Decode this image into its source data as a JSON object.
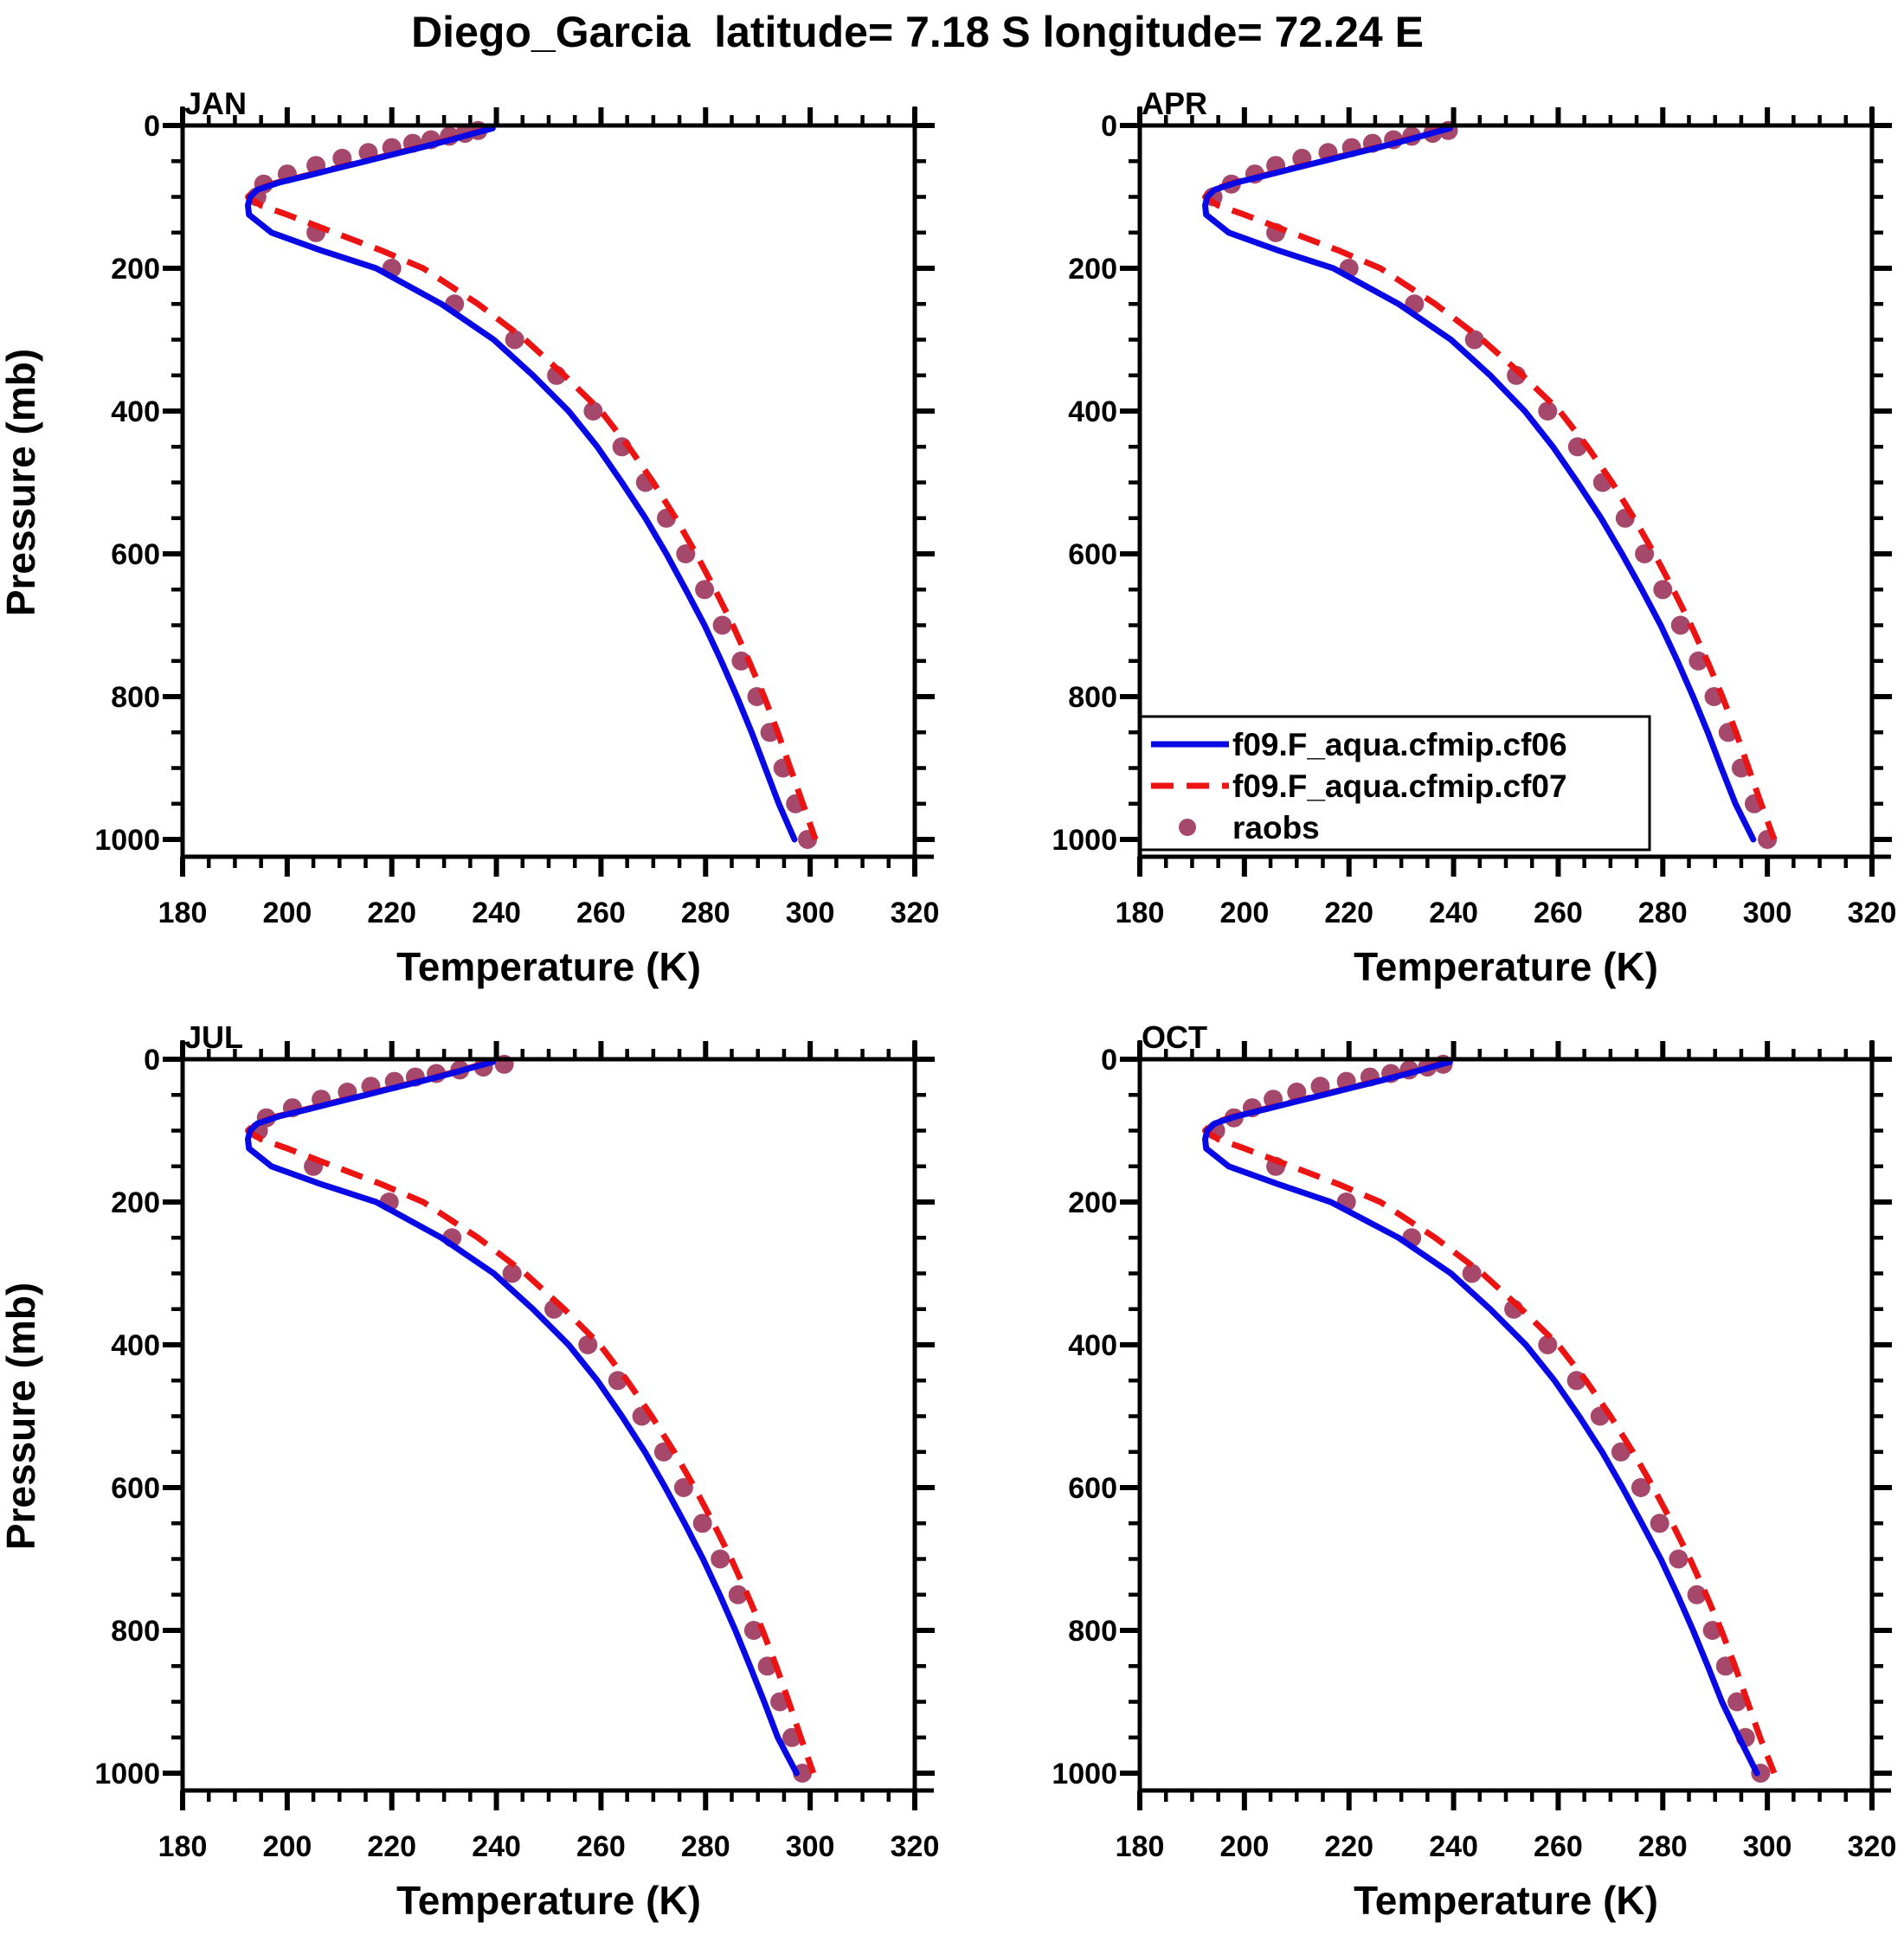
{
  "title": "Diego_Garcia  latitude= 7.18 S longitude= 72.24 E",
  "legend": {
    "panel": "APR",
    "items": [
      {
        "id": "cf06",
        "label": "f09.F_aqua.cfmip.cf06",
        "style": "solid-line",
        "color": "#0909e6"
      },
      {
        "id": "cf07",
        "label": "f09.F_aqua.cfmip.cf07",
        "style": "dashed-line",
        "color": "#ec1313"
      },
      {
        "id": "raobs",
        "label": "raobs",
        "style": "dot",
        "color": "#a5486b"
      }
    ]
  },
  "chart_data": {
    "type": "line",
    "layout": "2x2 panels",
    "xlabel": "Temperature (K)",
    "ylabel": "Pressure (mb)",
    "xlim": [
      180,
      320
    ],
    "ylim": [
      0,
      1000
    ],
    "y_inverted": true,
    "xticks": {
      "major_step": 20,
      "minor_step": 5,
      "labels": [
        "180",
        "200",
        "220",
        "240",
        "260",
        "280",
        "300",
        "320"
      ]
    },
    "yticks": {
      "major_step": 200,
      "minor_step": 50,
      "labels": [
        "0",
        "200",
        "400",
        "600",
        "800",
        "1000"
      ]
    },
    "grid": false,
    "colors": {
      "cf06": "#0909e6",
      "cf07": "#ec1313",
      "raobs": "#a5486b",
      "frame": "#000000"
    },
    "model_pressure_mb": [
      4,
      10,
      20,
      30,
      40,
      50,
      60,
      70,
      80,
      90,
      100,
      112,
      125,
      150,
      175,
      200,
      250,
      300,
      350,
      400,
      450,
      500,
      550,
      600,
      650,
      700,
      750,
      800,
      850,
      900,
      950,
      1000
    ],
    "raobs_pressure_mb": [
      7,
      11,
      15,
      20,
      25,
      31,
      38,
      46,
      56,
      68,
      82,
      100,
      150,
      200,
      250,
      300,
      350,
      400,
      450,
      500,
      550,
      600,
      650,
      700,
      750,
      800,
      850,
      900,
      950,
      1000
    ],
    "panels": [
      {
        "month": "JAN",
        "cf06_temperature_K": [
          239.3,
          236.2,
          231.3,
          226.0,
          220.5,
          215.0,
          209.5,
          204.0,
          198.4,
          194.3,
          192.9,
          192.5,
          192.7,
          197.0,
          206.5,
          217.0,
          229.5,
          239.5,
          247.0,
          253.8,
          259.3,
          264.0,
          268.5,
          272.5,
          276.2,
          279.8,
          283.0,
          286.0,
          288.8,
          291.4,
          294.0,
          297.0
        ],
        "cf07_temperature_K": [
          238.9,
          235.8,
          230.9,
          225.6,
          220.1,
          214.6,
          209.1,
          203.6,
          198.0,
          193.9,
          192.5,
          195.0,
          200.0,
          209.0,
          218.0,
          226.0,
          236.5,
          245.5,
          253.0,
          260.0,
          265.3,
          270.0,
          274.3,
          278.2,
          281.8,
          285.2,
          288.3,
          291.2,
          293.8,
          296.2,
          298.6,
          301.0
        ],
        "raobs_temperature_K": [
          236.5,
          234.0,
          231.0,
          227.5,
          224.0,
          220.0,
          215.5,
          210.5,
          205.5,
          200.0,
          195.5,
          194.2,
          205.5,
          220.0,
          232.0,
          243.5,
          251.5,
          258.5,
          264.0,
          268.5,
          272.5,
          276.2,
          279.8,
          283.2,
          286.8,
          289.8,
          292.3,
          294.8,
          297.2,
          299.5
        ]
      },
      {
        "month": "APR",
        "cf06_temperature_K": [
          239.3,
          236.2,
          231.3,
          226.0,
          220.5,
          215.0,
          209.5,
          204.0,
          198.4,
          194.3,
          192.9,
          192.5,
          192.7,
          197.0,
          206.5,
          217.0,
          229.5,
          239.5,
          247.0,
          253.6,
          259.0,
          263.7,
          268.2,
          272.2,
          276.0,
          279.6,
          282.8,
          285.8,
          288.6,
          291.2,
          293.9,
          297.3
        ],
        "cf07_temperature_K": [
          238.9,
          235.8,
          230.9,
          225.6,
          220.1,
          214.6,
          209.1,
          203.6,
          198.0,
          193.9,
          192.5,
          195.0,
          200.0,
          209.0,
          218.0,
          226.0,
          236.5,
          245.5,
          253.2,
          260.3,
          265.6,
          270.3,
          274.5,
          278.4,
          282.0,
          285.4,
          288.5,
          291.4,
          294.0,
          296.4,
          298.8,
          301.3
        ],
        "raobs_temperature_K": [
          239.0,
          236.0,
          232.0,
          228.5,
          224.5,
          220.5,
          216.0,
          211.0,
          206.0,
          202.0,
          197.5,
          194.0,
          206.0,
          220.0,
          232.5,
          244.0,
          252.0,
          258.0,
          263.7,
          268.5,
          272.8,
          276.5,
          280.0,
          283.4,
          286.8,
          289.8,
          292.5,
          295.0,
          297.5,
          300.0
        ]
      },
      {
        "month": "JUL",
        "cf06_temperature_K": [
          239.3,
          236.2,
          231.3,
          226.0,
          220.5,
          215.0,
          209.5,
          204.0,
          198.4,
          194.3,
          192.9,
          192.5,
          192.7,
          197.0,
          206.5,
          217.0,
          229.5,
          239.5,
          247.0,
          253.8,
          259.3,
          264.0,
          268.4,
          272.3,
          276.0,
          279.5,
          282.7,
          285.7,
          288.5,
          291.2,
          293.8,
          297.4
        ],
        "cf07_temperature_K": [
          238.9,
          235.8,
          230.9,
          225.6,
          220.1,
          214.6,
          209.1,
          203.6,
          198.0,
          193.9,
          192.5,
          195.0,
          200.0,
          209.0,
          218.0,
          226.0,
          236.5,
          245.5,
          253.0,
          259.8,
          265.0,
          269.7,
          274.0,
          277.9,
          281.5,
          284.9,
          288.0,
          290.9,
          293.5,
          295.9,
          298.2,
          300.6
        ],
        "raobs_temperature_K": [
          241.5,
          237.5,
          233.0,
          228.5,
          224.5,
          220.5,
          216.0,
          211.5,
          206.5,
          201.0,
          196.0,
          194.5,
          205.0,
          219.5,
          231.5,
          243.0,
          251.0,
          257.5,
          263.2,
          267.8,
          272.0,
          275.8,
          279.4,
          282.8,
          286.2,
          289.2,
          291.8,
          294.2,
          296.5,
          298.5
        ]
      },
      {
        "month": "OCT",
        "cf06_temperature_K": [
          239.3,
          236.2,
          231.3,
          226.0,
          220.5,
          215.0,
          209.5,
          204.0,
          198.4,
          194.3,
          192.9,
          192.5,
          192.7,
          197.0,
          206.5,
          216.5,
          229.5,
          239.5,
          247.0,
          253.8,
          259.3,
          264.0,
          268.4,
          272.3,
          276.0,
          279.6,
          282.8,
          285.8,
          288.6,
          291.3,
          294.6,
          298.0
        ],
        "cf07_temperature_K": [
          238.9,
          235.8,
          230.9,
          225.6,
          220.1,
          214.6,
          209.1,
          203.6,
          198.0,
          193.9,
          192.5,
          195.0,
          200.0,
          209.0,
          218.0,
          226.0,
          236.5,
          245.5,
          253.0,
          260.0,
          265.3,
          270.0,
          274.3,
          278.2,
          281.8,
          285.2,
          288.3,
          291.2,
          293.8,
          296.2,
          298.6,
          301.3
        ],
        "raobs_temperature_K": [
          238.0,
          235.0,
          231.5,
          228.0,
          224.0,
          219.5,
          214.5,
          210.0,
          205.5,
          201.5,
          198.0,
          194.5,
          206.0,
          219.5,
          232.0,
          243.5,
          251.5,
          258.0,
          263.5,
          268.0,
          272.0,
          275.8,
          279.4,
          283.0,
          286.5,
          289.5,
          292.0,
          294.2,
          295.8,
          298.7
        ]
      }
    ]
  }
}
